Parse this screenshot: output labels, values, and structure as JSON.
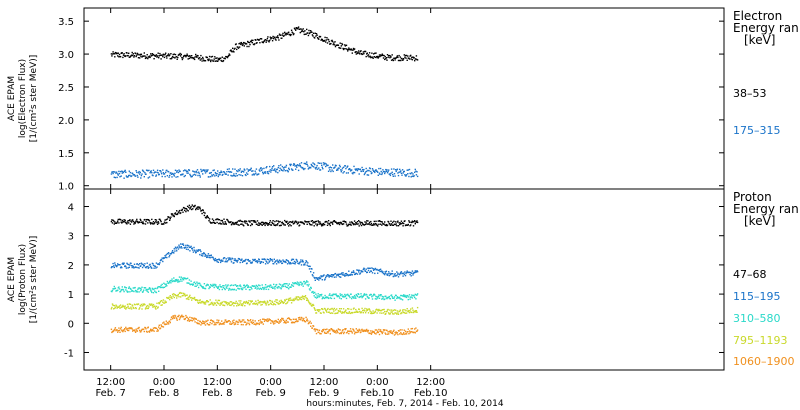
{
  "chart_data": [
    {
      "type": "scatter",
      "panel": "electron",
      "ylabel_lines": [
        "ACE EPAM",
        "log(Electron Flux)",
        "[1/(cm²s ster MeV)]"
      ],
      "ylim": [
        0.95,
        3.7
      ],
      "yticks": [
        1.0,
        1.5,
        2.0,
        2.5,
        3.0,
        3.5
      ],
      "ytick_labels": [
        "1.0",
        "1.5",
        "2.0",
        "2.5",
        "3.0",
        "3.5"
      ],
      "legend_title": [
        "Electron",
        "Energy ran",
        "[keV]"
      ],
      "series": [
        {
          "name": "38–53",
          "color": "#000000",
          "trend": [
            [
              0,
              3.0
            ],
            [
              18,
              2.97
            ],
            [
              24,
              2.92
            ],
            [
              26,
              2.96
            ],
            [
              28,
              3.12
            ],
            [
              34,
              3.22
            ],
            [
              38,
              3.27
            ],
            [
              42,
              3.38
            ],
            [
              45,
              3.32
            ],
            [
              50,
              3.18
            ],
            [
              56,
              3.02
            ],
            [
              62,
              2.96
            ],
            [
              70,
              2.95
            ],
            [
              76,
              2.97
            ],
            [
              80,
              3.15
            ],
            [
              82,
              3.22
            ],
            [
              86,
              3.12
            ],
            [
              92,
              3.0
            ],
            [
              100,
              2.97
            ],
            [
              110,
              2.93
            ]
          ]
        },
        {
          "name": "175–315",
          "color": "#1a73c9",
          "trend": [
            [
              0,
              1.18
            ],
            [
              20,
              1.2
            ],
            [
              30,
              1.22
            ],
            [
              40,
              1.28
            ],
            [
              45,
              1.33
            ],
            [
              50,
              1.27
            ],
            [
              60,
              1.22
            ],
            [
              70,
              1.2
            ],
            [
              80,
              1.22
            ],
            [
              90,
              1.2
            ],
            [
              100,
              1.19
            ],
            [
              110,
              1.18
            ]
          ]
        }
      ]
    },
    {
      "type": "scatter",
      "panel": "proton",
      "ylabel_lines": [
        "ACE EPAM",
        "log(Proton Flux)",
        "[1/(cm²s ster MeV)]"
      ],
      "ylim": [
        -1.6,
        4.6
      ],
      "yticks": [
        -1,
        0,
        1,
        2,
        3,
        4
      ],
      "ytick_labels": [
        "-1",
        "0",
        "1",
        "2",
        "3",
        "4"
      ],
      "legend_title": [
        "Proton",
        "Energy ran",
        "[keV]"
      ],
      "series": [
        {
          "name": "47–68",
          "color": "#000000",
          "trend": [
            [
              0,
              3.5
            ],
            [
              12,
              3.5
            ],
            [
              14,
              3.75
            ],
            [
              16,
              3.9
            ],
            [
              18,
              4.0
            ],
            [
              20,
              3.95
            ],
            [
              22,
              3.55
            ],
            [
              30,
              3.45
            ],
            [
              40,
              3.45
            ],
            [
              60,
              3.45
            ],
            [
              72,
              3.45
            ],
            [
              76,
              3.5
            ],
            [
              90,
              3.45
            ],
            [
              100,
              3.45
            ],
            [
              110,
              3.4
            ]
          ]
        },
        {
          "name": "115–195",
          "color": "#1a73c9",
          "trend": [
            [
              0,
              2.0
            ],
            [
              10,
              2.0
            ],
            [
              14,
              2.5
            ],
            [
              16,
              2.7
            ],
            [
              20,
              2.45
            ],
            [
              24,
              2.2
            ],
            [
              30,
              2.15
            ],
            [
              38,
              2.15
            ],
            [
              44,
              2.1
            ],
            [
              46,
              1.55
            ],
            [
              52,
              1.7
            ],
            [
              58,
              1.85
            ],
            [
              64,
              1.7
            ],
            [
              70,
              1.75
            ],
            [
              72,
              2.0
            ],
            [
              76,
              1.7
            ],
            [
              82,
              1.9
            ],
            [
              90,
              1.7
            ],
            [
              100,
              1.5
            ],
            [
              110,
              1.4
            ]
          ]
        },
        {
          "name": "310–580",
          "color": "#2ad9c9",
          "trend": [
            [
              0,
              1.2
            ],
            [
              10,
              1.15
            ],
            [
              14,
              1.5
            ],
            [
              16,
              1.55
            ],
            [
              20,
              1.3
            ],
            [
              26,
              1.25
            ],
            [
              34,
              1.25
            ],
            [
              40,
              1.3
            ],
            [
              44,
              1.4
            ],
            [
              46,
              0.95
            ],
            [
              56,
              0.95
            ],
            [
              64,
              0.9
            ],
            [
              70,
              0.95
            ],
            [
              72,
              1.25
            ],
            [
              76,
              0.85
            ],
            [
              82,
              0.75
            ],
            [
              90,
              0.6
            ],
            [
              100,
              0.4
            ],
            [
              110,
              0.3
            ]
          ]
        },
        {
          "name": "795–1193",
          "color": "#c9d92a",
          "trend": [
            [
              0,
              0.6
            ],
            [
              10,
              0.6
            ],
            [
              14,
              0.95
            ],
            [
              16,
              1.0
            ],
            [
              20,
              0.75
            ],
            [
              30,
              0.7
            ],
            [
              38,
              0.75
            ],
            [
              44,
              0.9
            ],
            [
              46,
              0.45
            ],
            [
              56,
              0.45
            ],
            [
              64,
              0.4
            ],
            [
              70,
              0.5
            ],
            [
              72,
              0.75
            ],
            [
              76,
              0.35
            ],
            [
              84,
              0.1
            ],
            [
              92,
              -0.1
            ],
            [
              100,
              -0.35
            ],
            [
              110,
              -0.55
            ]
          ]
        },
        {
          "name": "1060–1900",
          "color": "#f0901e",
          "trend": [
            [
              0,
              -0.2
            ],
            [
              10,
              -0.2
            ],
            [
              14,
              0.2
            ],
            [
              16,
              0.25
            ],
            [
              20,
              0.05
            ],
            [
              30,
              0.05
            ],
            [
              38,
              0.1
            ],
            [
              44,
              0.15
            ],
            [
              46,
              -0.25
            ],
            [
              56,
              -0.25
            ],
            [
              64,
              -0.3
            ],
            [
              70,
              -0.2
            ],
            [
              72,
              0.0
            ],
            [
              76,
              -0.45
            ],
            [
              84,
              -0.65
            ],
            [
              92,
              -0.8
            ],
            [
              100,
              -0.95
            ],
            [
              110,
              -1.05
            ]
          ]
        }
      ]
    }
  ],
  "x_axis": {
    "xlim": [
      -6,
      138
    ],
    "xlabel": "hours:minutes, Feb.  7, 2014 - Feb. 10, 2014",
    "ticks": [
      {
        "x": 0,
        "time": "12:00",
        "date": "Feb. 7"
      },
      {
        "x": 12,
        "time": "0:00",
        "date": "Feb. 8"
      },
      {
        "x": 24,
        "time": "12:00",
        "date": "Feb. 8"
      },
      {
        "x": 36,
        "time": "0:00",
        "date": "Feb. 9"
      },
      {
        "x": 48,
        "time": "12:00",
        "date": "Feb. 9"
      },
      {
        "x": 60,
        "time": "0:00",
        "date": "Feb.10"
      },
      {
        "x": 72,
        "time": "12:00",
        "date": "Feb.10"
      }
    ],
    "data_xmax": 69
  }
}
